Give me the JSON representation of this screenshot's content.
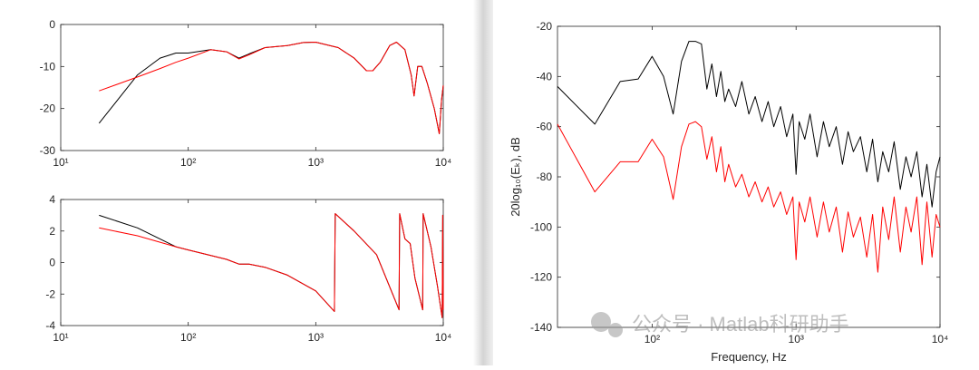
{
  "chart_data": [
    {
      "type": "line",
      "xlog": true,
      "xlim": [
        10,
        10000
      ],
      "ylim": [
        -30,
        0
      ],
      "xticks": [
        {
          "value": 10,
          "label": "10¹"
        },
        {
          "value": 100,
          "label": "10²"
        },
        {
          "value": 1000,
          "label": "10³"
        },
        {
          "value": 10000,
          "label": "10⁴"
        }
      ],
      "yticks": [
        0,
        -10,
        -20,
        -30
      ],
      "x": [
        20,
        40,
        60,
        80,
        100,
        150,
        200,
        250,
        300,
        400,
        600,
        800,
        1000,
        1500,
        2000,
        2500,
        2800,
        3200,
        3800,
        4300,
        5000,
        5600,
        5900,
        6300,
        6800,
        7500,
        8500,
        9300,
        9700,
        10000
      ],
      "series": [
        {
          "color": "#000000",
          "values": [
            -23.5,
            -12,
            -8,
            -6.8,
            -6.8,
            -6,
            -6.5,
            -8,
            -7,
            -5.5,
            -5,
            -4.3,
            -4.2,
            -5.5,
            -8,
            -11,
            -11,
            -9,
            -5,
            -4.2,
            -6,
            -12,
            -17,
            -10,
            -10,
            -14,
            -20,
            -26,
            -18,
            -14.5
          ]
        },
        {
          "color": "#ff0000",
          "values": [
            -15.8,
            -12.5,
            -10.5,
            -9,
            -8,
            -6,
            -6.5,
            -8.2,
            -7.2,
            -5.5,
            -5,
            -4.3,
            -4.2,
            -5.5,
            -8,
            -11,
            -11,
            -9,
            -5,
            -4.2,
            -6,
            -12,
            -17,
            -10,
            -10,
            -14,
            -20,
            -26,
            -18,
            -14.5
          ]
        }
      ]
    },
    {
      "type": "line",
      "xlog": true,
      "xlim": [
        10,
        10000
      ],
      "ylim": [
        -4,
        4
      ],
      "xticks": [
        {
          "value": 10,
          "label": "10¹"
        },
        {
          "value": 100,
          "label": "10²"
        },
        {
          "value": 1000,
          "label": "10³"
        },
        {
          "value": 10000,
          "label": "10⁴"
        }
      ],
      "yticks": [
        4,
        2,
        0,
        -2,
        -4
      ],
      "x": [
        20,
        40,
        80,
        100,
        200,
        250,
        300,
        400,
        600,
        1000,
        1400,
        1420,
        2000,
        3000,
        4500,
        4550,
        5000,
        5500,
        6000,
        6900,
        6950,
        8000,
        9000,
        9800,
        9900,
        10000
      ],
      "series": [
        {
          "color": "#000000",
          "values": [
            3,
            2.2,
            1,
            0.8,
            0.2,
            -0.1,
            -0.1,
            -0.3,
            -0.8,
            -1.8,
            -3.1,
            3.1,
            2,
            0.5,
            -3,
            3.1,
            1.5,
            1.2,
            -1,
            -3,
            3.1,
            1,
            -1.5,
            -3.5,
            3,
            -3
          ]
        },
        {
          "color": "#ff0000",
          "values": [
            2.2,
            1.7,
            1,
            0.8,
            0.2,
            -0.1,
            -0.1,
            -0.3,
            -0.8,
            -1.8,
            -3.1,
            3.1,
            2,
            0.5,
            -3,
            3.1,
            1.5,
            1.2,
            -1,
            -3,
            3.1,
            1,
            -1.5,
            -3.5,
            3,
            -3
          ]
        }
      ]
    },
    {
      "type": "line",
      "xlog": true,
      "xlim": [
        22,
        10000
      ],
      "ylim": [
        -140,
        -20
      ],
      "xticks": [
        {
          "value": 100,
          "label": "10²"
        },
        {
          "value": 1000,
          "label": "10³"
        },
        {
          "value": 10000,
          "label": "10⁴"
        }
      ],
      "yticks": [
        -20,
        -40,
        -60,
        -80,
        -100,
        -120,
        -140
      ],
      "xlabel": "Frequency, Hz",
      "ylabel": "20log₁₀(Eₖ), dB",
      "x": [
        22,
        40,
        60,
        80,
        100,
        120,
        140,
        160,
        180,
        200,
        220,
        240,
        260,
        280,
        300,
        320,
        340,
        380,
        420,
        470,
        520,
        580,
        640,
        700,
        780,
        860,
        950,
        1000,
        1050,
        1150,
        1250,
        1400,
        1550,
        1700,
        1900,
        2100,
        2300,
        2500,
        2800,
        3100,
        3400,
        3700,
        4000,
        4400,
        4800,
        5300,
        5800,
        6300,
        6900,
        7500,
        8100,
        8800,
        9400,
        10000
      ],
      "series": [
        {
          "color": "#000000",
          "values": [
            -44,
            -59,
            -42,
            -41,
            -32,
            -40,
            -55,
            -34,
            -26,
            -26,
            -27,
            -45,
            -35,
            -48,
            -38,
            -50,
            -45,
            -52,
            -42,
            -55,
            -48,
            -58,
            -50,
            -60,
            -52,
            -64,
            -55,
            -79,
            -58,
            -65,
            -55,
            -72,
            -58,
            -68,
            -60,
            -75,
            -62,
            -70,
            -64,
            -78,
            -65,
            -82,
            -70,
            -78,
            -66,
            -85,
            -72,
            -80,
            -70,
            -88,
            -75,
            -92,
            -78,
            -72
          ]
        },
        {
          "color": "#ff0000",
          "values": [
            -59,
            -86,
            -74,
            -74,
            -65,
            -72,
            -89,
            -68,
            -59,
            -58,
            -60,
            -73,
            -64,
            -78,
            -68,
            -82,
            -75,
            -84,
            -79,
            -88,
            -82,
            -90,
            -84,
            -92,
            -86,
            -95,
            -88,
            -113,
            -90,
            -98,
            -88,
            -104,
            -90,
            -102,
            -92,
            -110,
            -94,
            -104,
            -96,
            -112,
            -95,
            -118,
            -92,
            -105,
            -88,
            -110,
            -92,
            -102,
            -88,
            -115,
            -90,
            -112,
            -95,
            -100
          ]
        }
      ]
    }
  ],
  "watermark": "公众号 · Matlab科研助手"
}
